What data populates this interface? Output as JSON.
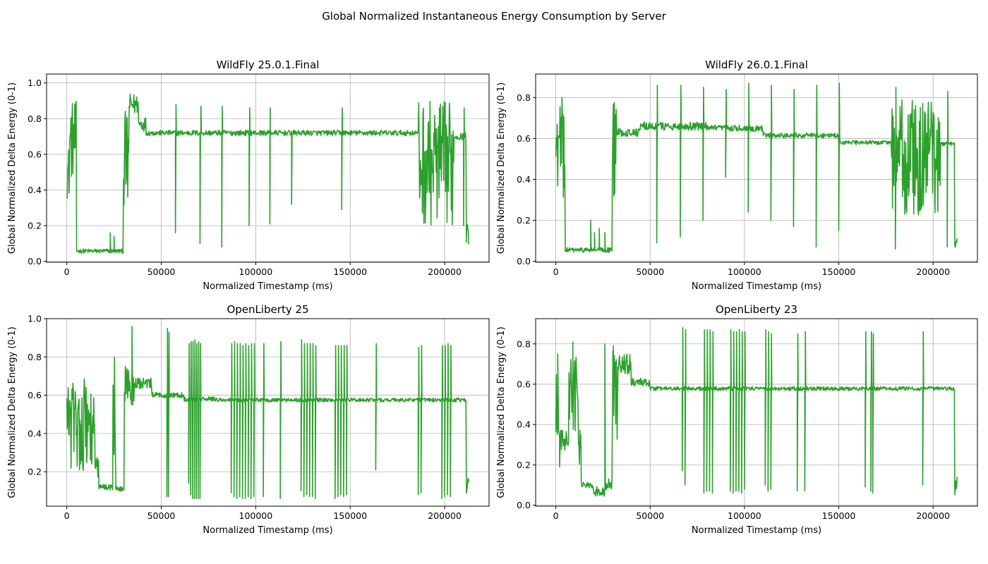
{
  "figure_title": "Global Normalized Instantaneous Energy Consumption by Server",
  "line_color": "#2ca02c",
  "chart_data": [
    {
      "type": "line",
      "title": "WildFly 25.0.1.Final",
      "xlabel": "Normalized Timestamp (ms)",
      "ylabel": "Global Normalized Delta Energy (0-1)",
      "xlim": [
        -10700,
        223500
      ],
      "ylim": [
        -0.005,
        1.05
      ],
      "xticks": [
        0,
        50000,
        100000,
        150000,
        200000
      ],
      "yticks": [
        0.0,
        0.2,
        0.4,
        0.6,
        0.8,
        1.0
      ],
      "ytick_decimals": 1,
      "grid": true,
      "segments": [
        {
          "x0": 0,
          "x1": 1500,
          "base": 0.5,
          "jitter": 0.15
        },
        {
          "x0": 1500,
          "x1": 5200,
          "base": 0.68,
          "jitter": 0.22
        },
        {
          "x0": 5200,
          "x1": 30000,
          "base": 0.058,
          "jitter": 0.012
        },
        {
          "x0": 30000,
          "x1": 33000,
          "base": 0.55,
          "jitter": 0.3
        },
        {
          "x0": 33000,
          "x1": 38000,
          "base": 0.88,
          "jitter": 0.06
        },
        {
          "x0": 38000,
          "x1": 42000,
          "base": 0.77,
          "jitter": 0.04
        },
        {
          "x0": 42000,
          "x1": 186000,
          "base": 0.72,
          "jitter": 0.015
        },
        {
          "x0": 186000,
          "x1": 205000,
          "base": 0.55,
          "jitter": 0.35
        },
        {
          "x0": 205000,
          "x1": 211500,
          "base": 0.7,
          "jitter": 0.02
        },
        {
          "x0": 211500,
          "x1": 213000,
          "base": 0.15,
          "jitter": 0.07
        }
      ],
      "spikes": [
        {
          "x": 23000,
          "y": 0.16
        },
        {
          "x": 25000,
          "y": 0.14
        },
        {
          "x": 57500,
          "y": 0.16
        },
        {
          "x": 57800,
          "y": 0.88
        },
        {
          "x": 70500,
          "y": 0.1
        },
        {
          "x": 71000,
          "y": 0.87
        },
        {
          "x": 82000,
          "y": 0.08
        },
        {
          "x": 82300,
          "y": 0.87
        },
        {
          "x": 96500,
          "y": 0.2
        },
        {
          "x": 96800,
          "y": 0.86
        },
        {
          "x": 107500,
          "y": 0.21
        },
        {
          "x": 107700,
          "y": 0.86
        },
        {
          "x": 119000,
          "y": 0.32
        },
        {
          "x": 145500,
          "y": 0.29
        },
        {
          "x": 145800,
          "y": 0.86
        },
        {
          "x": 210000,
          "y": 0.2
        },
        {
          "x": 210300,
          "y": 0.86
        }
      ]
    },
    {
      "type": "line",
      "title": "WildFly 26.0.1.Final",
      "xlabel": "Normalized Timestamp (ms)",
      "ylabel": "Global Normalized Delta Energy (0-1)",
      "xlim": [
        -10700,
        223500
      ],
      "ylim": [
        -0.005,
        0.915
      ],
      "xticks": [
        0,
        50000,
        100000,
        150000,
        200000
      ],
      "yticks": [
        0.0,
        0.2,
        0.4,
        0.6,
        0.8
      ],
      "ytick_decimals": 1,
      "grid": true,
      "segments": [
        {
          "x0": 0,
          "x1": 1500,
          "base": 0.55,
          "jitter": 0.2
        },
        {
          "x0": 1500,
          "x1": 5000,
          "base": 0.55,
          "jitter": 0.25
        },
        {
          "x0": 5000,
          "x1": 30000,
          "base": 0.055,
          "jitter": 0.012
        },
        {
          "x0": 30000,
          "x1": 32500,
          "base": 0.55,
          "jitter": 0.25
        },
        {
          "x0": 32500,
          "x1": 45000,
          "base": 0.63,
          "jitter": 0.02
        },
        {
          "x0": 45000,
          "x1": 80000,
          "base": 0.66,
          "jitter": 0.02
        },
        {
          "x0": 80000,
          "x1": 110000,
          "base": 0.65,
          "jitter": 0.015
        },
        {
          "x0": 110000,
          "x1": 150000,
          "base": 0.615,
          "jitter": 0.012
        },
        {
          "x0": 150000,
          "x1": 178000,
          "base": 0.58,
          "jitter": 0.01
        },
        {
          "x0": 178000,
          "x1": 204000,
          "base": 0.5,
          "jitter": 0.3
        },
        {
          "x0": 204000,
          "x1": 211500,
          "base": 0.575,
          "jitter": 0.01
        },
        {
          "x0": 211500,
          "x1": 213000,
          "base": 0.13,
          "jitter": 0.07
        }
      ],
      "spikes": [
        {
          "x": 18500,
          "y": 0.2
        },
        {
          "x": 20500,
          "y": 0.14
        },
        {
          "x": 23000,
          "y": 0.16
        },
        {
          "x": 26000,
          "y": 0.14
        },
        {
          "x": 53500,
          "y": 0.09
        },
        {
          "x": 53800,
          "y": 0.86
        },
        {
          "x": 66000,
          "y": 0.12
        },
        {
          "x": 66300,
          "y": 0.86
        },
        {
          "x": 78000,
          "y": 0.2
        },
        {
          "x": 78300,
          "y": 0.85
        },
        {
          "x": 90000,
          "y": 0.41
        },
        {
          "x": 90300,
          "y": 0.84
        },
        {
          "x": 102000,
          "y": 0.24
        },
        {
          "x": 102300,
          "y": 0.87
        },
        {
          "x": 114000,
          "y": 0.2
        },
        {
          "x": 114300,
          "y": 0.86
        },
        {
          "x": 126000,
          "y": 0.17
        },
        {
          "x": 126300,
          "y": 0.84
        },
        {
          "x": 138000,
          "y": 0.07
        },
        {
          "x": 138300,
          "y": 0.86
        },
        {
          "x": 150000,
          "y": 0.15
        },
        {
          "x": 150300,
          "y": 0.87
        },
        {
          "x": 180000,
          "y": 0.06
        },
        {
          "x": 180300,
          "y": 0.85
        },
        {
          "x": 207500,
          "y": 0.07
        },
        {
          "x": 207800,
          "y": 0.83
        }
      ]
    },
    {
      "type": "line",
      "title": "OpenLiberty 25",
      "xlabel": "Normalized Timestamp (ms)",
      "ylabel": "Global Normalized Delta Energy (0-1)",
      "xlim": [
        -10700,
        223500
      ],
      "ylim": [
        0.02,
        1.0
      ],
      "xticks": [
        0,
        50000,
        100000,
        150000,
        200000
      ],
      "yticks": [
        0.2,
        0.4,
        0.6,
        0.8,
        1.0
      ],
      "ytick_decimals": 1,
      "grid": true,
      "segments": [
        {
          "x0": 0,
          "x1": 2000,
          "base": 0.5,
          "jitter": 0.15
        },
        {
          "x0": 2000,
          "x1": 15000,
          "base": 0.45,
          "jitter": 0.25
        },
        {
          "x0": 15000,
          "x1": 17000,
          "base": 0.2,
          "jitter": 0.08
        },
        {
          "x0": 17000,
          "x1": 24500,
          "base": 0.12,
          "jitter": 0.015
        },
        {
          "x0": 24500,
          "x1": 26000,
          "base": 0.5,
          "jitter": 0.3
        },
        {
          "x0": 26000,
          "x1": 30500,
          "base": 0.11,
          "jitter": 0.015
        },
        {
          "x0": 30500,
          "x1": 36000,
          "base": 0.65,
          "jitter": 0.12
        },
        {
          "x0": 36000,
          "x1": 45000,
          "base": 0.66,
          "jitter": 0.03
        },
        {
          "x0": 45000,
          "x1": 62000,
          "base": 0.6,
          "jitter": 0.015
        },
        {
          "x0": 62000,
          "x1": 80000,
          "base": 0.58,
          "jitter": 0.012
        },
        {
          "x0": 80000,
          "x1": 211500,
          "base": 0.575,
          "jitter": 0.01
        },
        {
          "x0": 211500,
          "x1": 213000,
          "base": 0.13,
          "jitter": 0.05
        }
      ],
      "spikes": [
        {
          "x": 34500,
          "y": 0.96
        },
        {
          "x": 53000,
          "y": 0.07
        },
        {
          "x": 53300,
          "y": 0.95
        },
        {
          "x": 53800,
          "y": 0.07
        },
        {
          "x": 54100,
          "y": 0.93
        },
        {
          "x": 64500,
          "y": 0.14
        },
        {
          "x": 64800,
          "y": 0.87
        },
        {
          "x": 65500,
          "y": 0.08
        },
        {
          "x": 65800,
          "y": 0.88
        },
        {
          "x": 66500,
          "y": 0.06
        },
        {
          "x": 66800,
          "y": 0.88
        },
        {
          "x": 67500,
          "y": 0.06
        },
        {
          "x": 67800,
          "y": 0.89
        },
        {
          "x": 68500,
          "y": 0.06
        },
        {
          "x": 68800,
          "y": 0.87
        },
        {
          "x": 69500,
          "y": 0.06
        },
        {
          "x": 69800,
          "y": 0.88
        },
        {
          "x": 70500,
          "y": 0.06
        },
        {
          "x": 70800,
          "y": 0.87
        },
        {
          "x": 87000,
          "y": 0.09
        },
        {
          "x": 87300,
          "y": 0.87
        },
        {
          "x": 88500,
          "y": 0.07
        },
        {
          "x": 88800,
          "y": 0.88
        },
        {
          "x": 90000,
          "y": 0.06
        },
        {
          "x": 90300,
          "y": 0.87
        },
        {
          "x": 91500,
          "y": 0.07
        },
        {
          "x": 91800,
          "y": 0.87
        },
        {
          "x": 93000,
          "y": 0.06
        },
        {
          "x": 93300,
          "y": 0.86
        },
        {
          "x": 94500,
          "y": 0.06
        },
        {
          "x": 94800,
          "y": 0.87
        },
        {
          "x": 96000,
          "y": 0.07
        },
        {
          "x": 96300,
          "y": 0.86
        },
        {
          "x": 97500,
          "y": 0.06
        },
        {
          "x": 97800,
          "y": 0.87
        },
        {
          "x": 99000,
          "y": 0.07
        },
        {
          "x": 99300,
          "y": 0.87
        },
        {
          "x": 104000,
          "y": 0.07
        },
        {
          "x": 104300,
          "y": 0.87
        },
        {
          "x": 113000,
          "y": 0.06
        },
        {
          "x": 113300,
          "y": 0.88
        },
        {
          "x": 124000,
          "y": 0.1
        },
        {
          "x": 124300,
          "y": 0.89
        },
        {
          "x": 125500,
          "y": 0.07
        },
        {
          "x": 125800,
          "y": 0.87
        },
        {
          "x": 127000,
          "y": 0.08
        },
        {
          "x": 127300,
          "y": 0.87
        },
        {
          "x": 128500,
          "y": 0.07
        },
        {
          "x": 128800,
          "y": 0.87
        },
        {
          "x": 130000,
          "y": 0.07
        },
        {
          "x": 130300,
          "y": 0.87
        },
        {
          "x": 131500,
          "y": 0.06
        },
        {
          "x": 131800,
          "y": 0.86
        },
        {
          "x": 142000,
          "y": 0.06
        },
        {
          "x": 142300,
          "y": 0.86
        },
        {
          "x": 143500,
          "y": 0.07
        },
        {
          "x": 143800,
          "y": 0.86
        },
        {
          "x": 145000,
          "y": 0.08
        },
        {
          "x": 145300,
          "y": 0.86
        },
        {
          "x": 146500,
          "y": 0.07
        },
        {
          "x": 146800,
          "y": 0.86
        },
        {
          "x": 148000,
          "y": 0.08
        },
        {
          "x": 148300,
          "y": 0.86
        },
        {
          "x": 163500,
          "y": 0.21
        },
        {
          "x": 163800,
          "y": 0.87
        },
        {
          "x": 186000,
          "y": 0.08
        },
        {
          "x": 186300,
          "y": 0.85
        },
        {
          "x": 187500,
          "y": 0.09
        },
        {
          "x": 187800,
          "y": 0.86
        },
        {
          "x": 198500,
          "y": 0.06
        },
        {
          "x": 198800,
          "y": 0.86
        },
        {
          "x": 200000,
          "y": 0.07
        },
        {
          "x": 200300,
          "y": 0.86
        },
        {
          "x": 201500,
          "y": 0.08
        },
        {
          "x": 201800,
          "y": 0.87
        },
        {
          "x": 203000,
          "y": 0.07
        },
        {
          "x": 203300,
          "y": 0.86
        }
      ]
    },
    {
      "type": "line",
      "title": "OpenLiberty 23",
      "xlabel": "Normalized Timestamp (ms)",
      "ylabel": "Global Normalized Delta Energy (0-1)",
      "xlim": [
        -10700,
        223500
      ],
      "ylim": [
        -0.005,
        0.925
      ],
      "xticks": [
        0,
        50000,
        100000,
        150000,
        200000
      ],
      "yticks": [
        0.0,
        0.2,
        0.4,
        0.6,
        0.8
      ],
      "ytick_decimals": 1,
      "grid": true,
      "segments": [
        {
          "x0": 0,
          "x1": 1500,
          "base": 0.5,
          "jitter": 0.2
        },
        {
          "x0": 1500,
          "x1": 7000,
          "base": 0.32,
          "jitter": 0.06
        },
        {
          "x0": 7000,
          "x1": 12000,
          "base": 0.55,
          "jitter": 0.2
        },
        {
          "x0": 12000,
          "x1": 13500,
          "base": 0.3,
          "jitter": 0.1
        },
        {
          "x0": 13500,
          "x1": 20000,
          "base": 0.1,
          "jitter": 0.015
        },
        {
          "x0": 20000,
          "x1": 26000,
          "base": 0.07,
          "jitter": 0.025
        },
        {
          "x0": 26000,
          "x1": 30000,
          "base": 0.1,
          "jitter": 0.03
        },
        {
          "x0": 30000,
          "x1": 33000,
          "base": 0.55,
          "jitter": 0.25
        },
        {
          "x0": 33000,
          "x1": 40000,
          "base": 0.7,
          "jitter": 0.05
        },
        {
          "x0": 40000,
          "x1": 50000,
          "base": 0.61,
          "jitter": 0.02
        },
        {
          "x0": 50000,
          "x1": 211500,
          "base": 0.578,
          "jitter": 0.01
        },
        {
          "x0": 211500,
          "x1": 213000,
          "base": 0.1,
          "jitter": 0.05
        }
      ],
      "spikes": [
        {
          "x": 1000,
          "y": 0.75
        },
        {
          "x": 2000,
          "y": 0.19
        },
        {
          "x": 9000,
          "y": 0.81
        },
        {
          "x": 26000,
          "y": 0.8
        },
        {
          "x": 30500,
          "y": 0.79
        },
        {
          "x": 67000,
          "y": 0.17
        },
        {
          "x": 67300,
          "y": 0.88
        },
        {
          "x": 68500,
          "y": 0.1
        },
        {
          "x": 68800,
          "y": 0.87
        },
        {
          "x": 78500,
          "y": 0.06
        },
        {
          "x": 78800,
          "y": 0.87
        },
        {
          "x": 80000,
          "y": 0.07
        },
        {
          "x": 80300,
          "y": 0.87
        },
        {
          "x": 81500,
          "y": 0.07
        },
        {
          "x": 81800,
          "y": 0.87
        },
        {
          "x": 83000,
          "y": 0.06
        },
        {
          "x": 83300,
          "y": 0.86
        },
        {
          "x": 92500,
          "y": 0.07
        },
        {
          "x": 92800,
          "y": 0.87
        },
        {
          "x": 94000,
          "y": 0.06
        },
        {
          "x": 94300,
          "y": 0.86
        },
        {
          "x": 95500,
          "y": 0.07
        },
        {
          "x": 95800,
          "y": 0.86
        },
        {
          "x": 97000,
          "y": 0.07
        },
        {
          "x": 97300,
          "y": 0.87
        },
        {
          "x": 98500,
          "y": 0.06
        },
        {
          "x": 98800,
          "y": 0.86
        },
        {
          "x": 100000,
          "y": 0.08
        },
        {
          "x": 100300,
          "y": 0.86
        },
        {
          "x": 111000,
          "y": 0.1
        },
        {
          "x": 111300,
          "y": 0.87
        },
        {
          "x": 112500,
          "y": 0.07
        },
        {
          "x": 112800,
          "y": 0.86
        },
        {
          "x": 114000,
          "y": 0.08
        },
        {
          "x": 114300,
          "y": 0.85
        },
        {
          "x": 128000,
          "y": 0.07
        },
        {
          "x": 128300,
          "y": 0.85
        },
        {
          "x": 132000,
          "y": 0.07
        },
        {
          "x": 132300,
          "y": 0.86
        },
        {
          "x": 164000,
          "y": 0.09
        },
        {
          "x": 164300,
          "y": 0.86
        },
        {
          "x": 167000,
          "y": 0.07
        },
        {
          "x": 167300,
          "y": 0.86
        },
        {
          "x": 168000,
          "y": 0.06
        },
        {
          "x": 168300,
          "y": 0.85
        },
        {
          "x": 194500,
          "y": 0.1
        },
        {
          "x": 194800,
          "y": 0.86
        }
      ]
    }
  ]
}
